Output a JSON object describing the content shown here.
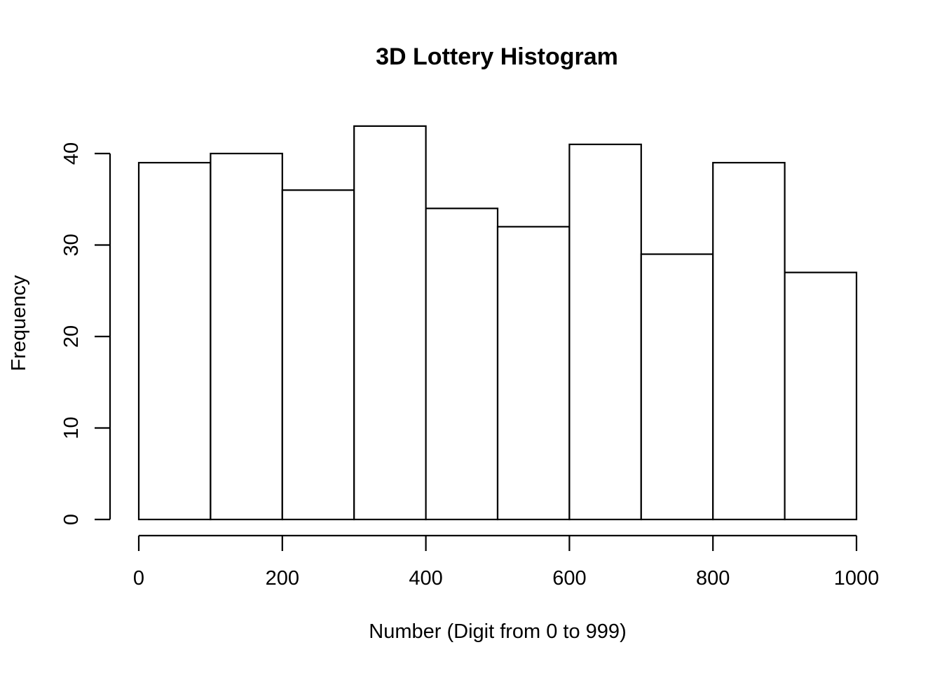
{
  "chart_data": {
    "type": "bar",
    "subtype": "histogram",
    "title": "3D Lottery Histogram",
    "xlabel": "Number (Digit from 0 to 999)",
    "ylabel": "Frequency",
    "bin_edges": [
      0,
      100,
      200,
      300,
      400,
      500,
      600,
      700,
      800,
      900,
      1000
    ],
    "values": [
      39,
      40,
      36,
      43,
      34,
      32,
      41,
      29,
      39,
      27
    ],
    "xlim": [
      0,
      1000
    ],
    "ylim": [
      0,
      43
    ],
    "x_ticks": [
      0,
      200,
      400,
      600,
      800,
      1000
    ],
    "x_tick_labels": [
      "0",
      "200",
      "400",
      "600",
      "800",
      "1000"
    ],
    "y_ticks": [
      0,
      10,
      20,
      30,
      40
    ],
    "y_tick_labels": [
      "0",
      "10",
      "20",
      "30",
      "40"
    ],
    "grid": false,
    "colors": {
      "bar_fill": "#ffffff",
      "bar_stroke": "#000000",
      "axis": "#000000",
      "background": "#ffffff"
    }
  }
}
